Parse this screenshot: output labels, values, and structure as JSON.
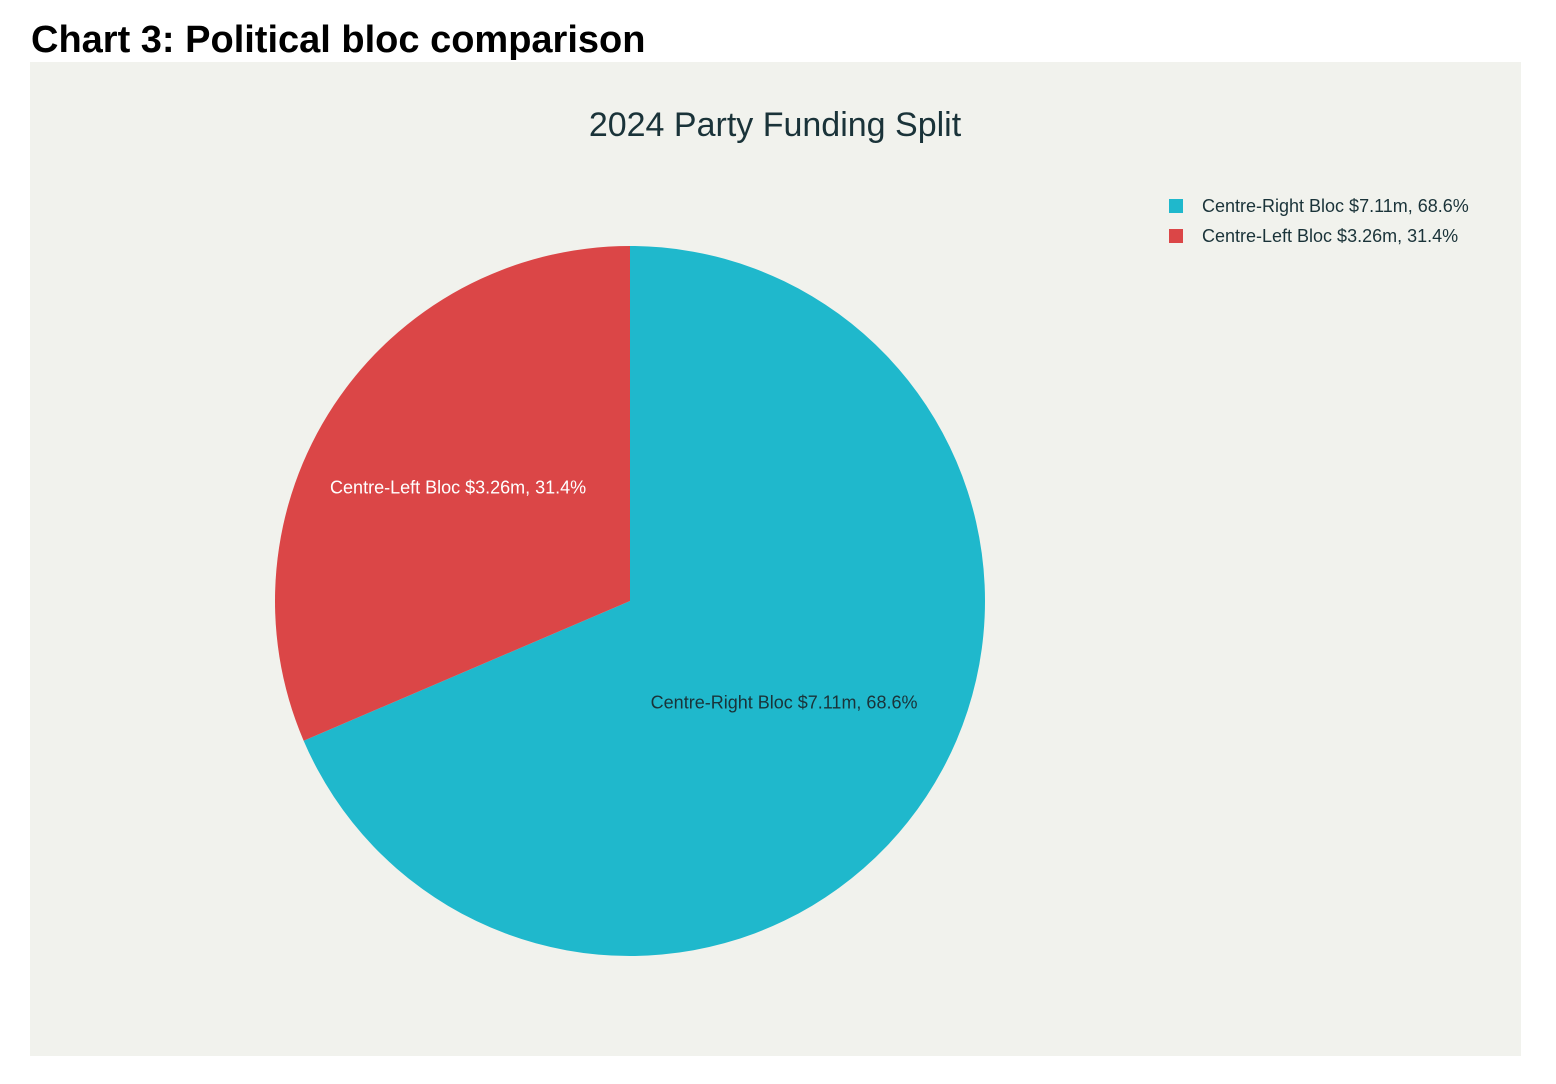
{
  "page": {
    "heading": "Chart 3: Political bloc comparison"
  },
  "colors": {
    "panel_background": "#f1f2ed",
    "title": "#1a3339",
    "centre_right": "#1fb8cc",
    "centre_left": "#db4647"
  },
  "chart_data": {
    "type": "pie",
    "title": "2024 Party Funding Split",
    "legend_position": "top-right",
    "start_angle_deg": 0,
    "direction": "clockwise",
    "slices": [
      {
        "name": "Centre-Right Bloc",
        "value": 7.11,
        "unit": "$m",
        "percent": 68.6,
        "label": "Centre-Right Bloc $7.11m, 68.6%",
        "color": "#1fb8cc",
        "label_color": "#1a3339"
      },
      {
        "name": "Centre-Left Bloc",
        "value": 3.26,
        "unit": "$m",
        "percent": 31.4,
        "label": "Centre-Left Bloc $3.26m, 31.4%",
        "color": "#db4647",
        "label_color": "#ffffff"
      }
    ]
  }
}
